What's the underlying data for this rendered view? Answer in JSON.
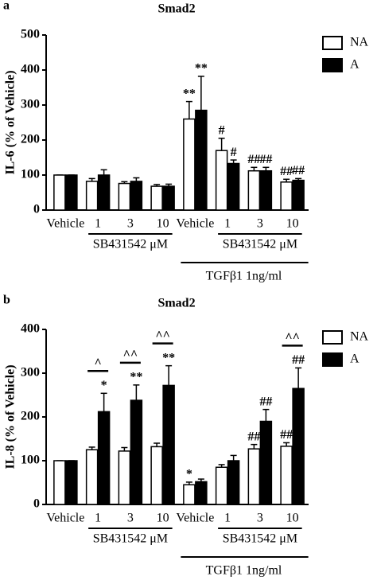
{
  "chart_data": [
    {
      "type": "bar",
      "panel": "a",
      "title": "Smad2",
      "y_label": "IL-6 (% of Vehicle)",
      "categories": [
        "Vehicle",
        "1",
        "3",
        "10",
        "Vehicle",
        "1",
        "3",
        "10"
      ],
      "series": [
        {
          "name": "NA",
          "color": "#ffffff",
          "values": [
            100,
            82,
            76,
            68,
            260,
            170,
            112,
            80
          ],
          "errors": [
            0,
            8,
            5,
            5,
            50,
            35,
            10,
            8
          ]
        },
        {
          "name": "A",
          "color": "#000000",
          "values": [
            100,
            100,
            82,
            68,
            285,
            133,
            112,
            85
          ],
          "errors": [
            0,
            15,
            10,
            6,
            97,
            10,
            10,
            5
          ]
        }
      ],
      "ylim": [
        0,
        500
      ],
      "yticks": [
        0,
        100,
        200,
        300,
        400,
        500
      ],
      "legend": "upper right",
      "annotations": [
        {
          "text": "**",
          "series": 0,
          "index": 4
        },
        {
          "text": "**",
          "series": 1,
          "index": 4
        },
        {
          "text": "#",
          "series": 0,
          "index": 5,
          "color": "#888888"
        },
        {
          "text": "#",
          "series": 1,
          "index": 5,
          "color": "#888888"
        },
        {
          "text": "##",
          "series": 0,
          "index": 6,
          "color": "#888888"
        },
        {
          "text": "##",
          "series": 1,
          "index": 6,
          "color": "#888888"
        },
        {
          "text": "##",
          "series": 0,
          "index": 7,
          "color": "#888888"
        },
        {
          "text": "##",
          "series": 1,
          "index": 7,
          "color": "#888888"
        }
      ],
      "comparisons": [],
      "groups": [
        {
          "label": "SB431542 μM",
          "from": 1,
          "to": 3
        },
        {
          "label": "SB431542 μM",
          "from": 5,
          "to": 7
        }
      ],
      "treatment": {
        "label": "TGFβ1 1ng/ml",
        "from": 4,
        "to": 7
      }
    },
    {
      "type": "bar",
      "panel": "b",
      "title": "Smad2",
      "y_label": "IL-8 (% of Vehicle)",
      "categories": [
        "Vehicle",
        "1",
        "3",
        "10",
        "Vehicle",
        "1",
        "3",
        "10"
      ],
      "series": [
        {
          "name": "NA",
          "color": "#ffffff",
          "values": [
            100,
            125,
            122,
            132,
            45,
            85,
            127,
            133
          ],
          "errors": [
            0,
            6,
            8,
            8,
            6,
            6,
            10,
            8
          ]
        },
        {
          "name": "A",
          "color": "#000000",
          "values": [
            100,
            212,
            238,
            272,
            52,
            100,
            190,
            265
          ],
          "errors": [
            0,
            42,
            35,
            45,
            6,
            12,
            27,
            47
          ]
        }
      ],
      "ylim": [
        0,
        400
      ],
      "yticks": [
        0,
        100,
        200,
        300,
        400
      ],
      "legend": "upper right",
      "annotations": [
        {
          "text": "*",
          "series": 1,
          "index": 1
        },
        {
          "text": "**",
          "series": 1,
          "index": 2
        },
        {
          "text": "**",
          "series": 1,
          "index": 3
        },
        {
          "text": "*",
          "series": 0,
          "index": 4
        },
        {
          "text": "##",
          "series": 0,
          "index": 6,
          "color": "#888888"
        },
        {
          "text": "##",
          "series": 1,
          "index": 6,
          "color": "#888888"
        },
        {
          "text": "##",
          "series": 0,
          "index": 7,
          "color": "#888888"
        },
        {
          "text": "##",
          "series": 1,
          "index": 7,
          "color": "#888888"
        }
      ],
      "comparisons": [
        {
          "text": "^",
          "index": 1
        },
        {
          "text": "^^",
          "index": 2
        },
        {
          "text": "^^",
          "index": 3
        },
        {
          "text": "^^",
          "index": 7
        }
      ],
      "groups": [
        {
          "label": "SB431542 μM",
          "from": 1,
          "to": 3
        },
        {
          "label": "SB431542 μM",
          "from": 5,
          "to": 7
        }
      ],
      "treatment": {
        "label": "TGFβ1 1ng/ml",
        "from": 4,
        "to": 7
      }
    }
  ]
}
